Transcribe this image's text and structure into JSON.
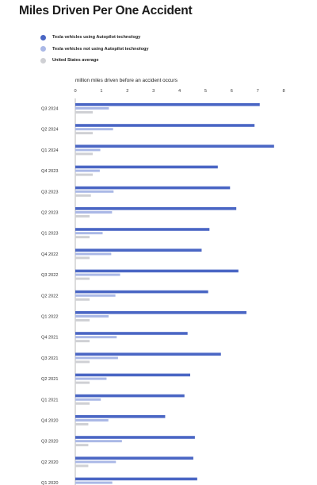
{
  "title": "Miles Driven Per One Accident",
  "legend": [
    {
      "label": "Tesla vehicles using Autopilot technology",
      "color": "#4a66c4"
    },
    {
      "label": "Tesla vehicles not using Autopilot technology",
      "color": "#aab8e6"
    },
    {
      "label": "United States average",
      "color": "#cfd0d4"
    }
  ],
  "chart_data": {
    "type": "bar",
    "orientation": "horizontal",
    "title": "Miles Driven Per One Accident",
    "xlabel": "million miles driven before an accident occurs",
    "xlim": [
      0,
      8
    ],
    "xticks": [
      0,
      1,
      2,
      3,
      4,
      5,
      6,
      7,
      8
    ],
    "legend_position": "top-left",
    "grid": false,
    "categories": [
      "Q3 2024",
      "Q2 2024",
      "Q1 2024",
      "Q4 2023",
      "Q3 2023",
      "Q2 2023",
      "Q1 2023",
      "Q4 2022",
      "Q3 2022",
      "Q2 2022",
      "Q1 2022",
      "Q4 2021",
      "Q3 2021",
      "Q2 2021",
      "Q1 2021",
      "Q4 2020",
      "Q3 2020",
      "Q2 2020",
      "Q1 2020"
    ],
    "series": [
      {
        "name": "Tesla vehicles using Autopilot technology",
        "color": "#4a66c4",
        "values": [
          7.08,
          6.88,
          7.63,
          5.47,
          5.94,
          6.18,
          5.15,
          4.85,
          6.26,
          5.1,
          6.57,
          4.31,
          5.59,
          4.41,
          4.19,
          3.45,
          4.59,
          4.53,
          4.68
        ]
      },
      {
        "name": "Tesla vehicles not using Autopilot technology",
        "color": "#aab8e6",
        "values": [
          1.29,
          1.45,
          0.96,
          0.94,
          1.47,
          1.41,
          1.05,
          1.38,
          1.72,
          1.54,
          1.28,
          1.59,
          1.64,
          1.2,
          0.98,
          1.27,
          1.79,
          1.56,
          1.42
        ]
      },
      {
        "name": "United States average",
        "color": "#cfd0d4",
        "values": [
          0.67,
          0.67,
          0.67,
          0.67,
          0.6,
          0.55,
          0.55,
          0.55,
          0.55,
          0.55,
          0.55,
          0.55,
          0.55,
          0.55,
          0.55,
          0.5,
          0.5,
          0.5,
          0.5
        ]
      }
    ]
  }
}
